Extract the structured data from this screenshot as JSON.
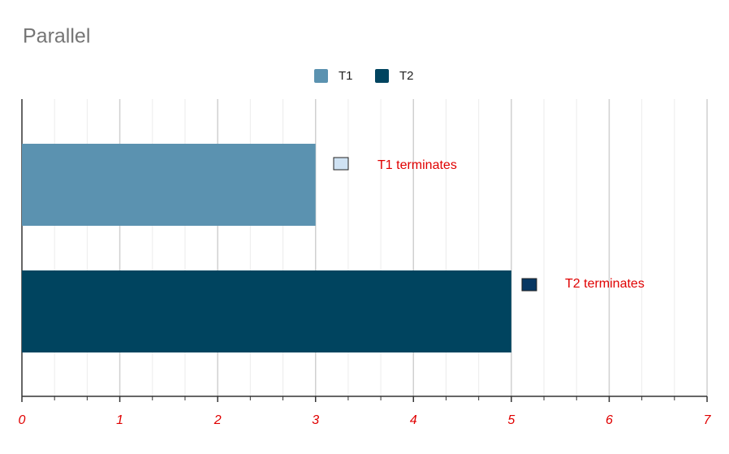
{
  "chart_data": {
    "type": "bar",
    "orientation": "horizontal",
    "title": "Parallel",
    "categories": [
      null,
      null
    ],
    "series": [
      {
        "name": "T1",
        "color": "#5b92b0",
        "values": [
          3,
          null
        ]
      },
      {
        "name": "T2",
        "color": "#00445f",
        "values": [
          null,
          5
        ]
      }
    ],
    "xlim": [
      0,
      7
    ],
    "xticks": [
      0,
      1,
      2,
      3,
      4,
      5,
      6,
      7
    ],
    "minor_divisions": 3,
    "grid": true,
    "legend": "top",
    "annotations": [
      {
        "text": "T1 terminates",
        "color": "#cfe2f3"
      },
      {
        "text": "T2 terminates",
        "color": "#073763"
      }
    ]
  }
}
